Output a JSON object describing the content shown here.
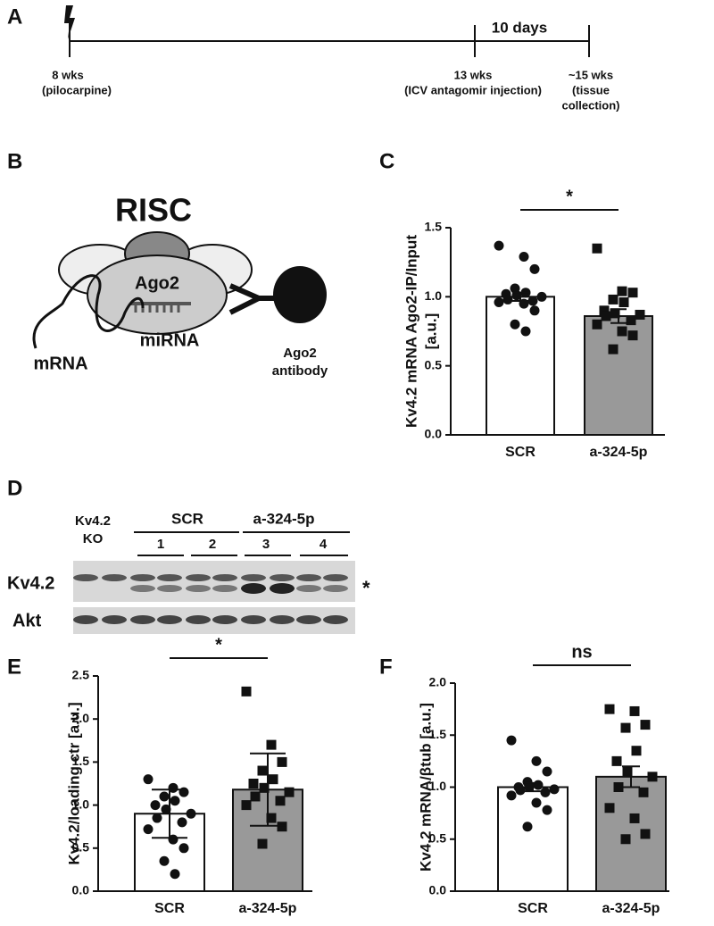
{
  "panel_labels": [
    "A",
    "B",
    "C",
    "D",
    "E",
    "F"
  ],
  "timeline": {
    "duration": "10 days",
    "points": [
      {
        "label": "8 wks",
        "note": "(pilocarpine)"
      },
      {
        "label": "13 wks",
        "note": "(ICV antagomir injection)"
      },
      {
        "label": "~15 wks",
        "note": [
          "(tissue",
          "collection)"
        ]
      }
    ]
  },
  "diagram": {
    "title": "RISC",
    "protein": "Ago2",
    "mirna": "miRNA",
    "mrna": "mRNA",
    "antibody": [
      "Ago2",
      "antibody"
    ]
  },
  "blot": {
    "control": [
      "Kv4.2",
      "KO"
    ],
    "groups": [
      {
        "name": "SCR",
        "lanes": [
          "1",
          "2"
        ]
      },
      {
        "name": "a-324-5p",
        "lanes": [
          "3",
          "4"
        ]
      }
    ],
    "rows": [
      "Kv4.2",
      "Akt"
    ],
    "annotation": "*"
  },
  "chart_data": [
    {
      "type": "bar",
      "ylabel": [
        "Kv4.2 mRNA Ago2-IP/Input",
        "[a.u.]"
      ],
      "categories": [
        "SCR",
        "a-324-5p"
      ],
      "values": [
        1.0,
        0.86
      ],
      "errors": [
        0.03,
        0.05
      ],
      "colors": [
        "#ffffff",
        "#999999"
      ],
      "markers": [
        "circle",
        "square"
      ],
      "significance": "*",
      "points": [
        [
          1.37,
          1.29,
          1.2,
          1.06,
          1.03,
          1.02,
          1.01,
          1.0,
          0.98,
          0.97,
          0.96,
          0.95,
          0.9,
          0.8,
          0.75
        ],
        [
          1.35,
          1.04,
          1.03,
          0.98,
          0.96,
          0.9,
          0.88,
          0.87,
          0.86,
          0.83,
          0.8,
          0.75,
          0.72,
          0.62
        ]
      ],
      "ylim": [
        0,
        1.5
      ],
      "yticks": [
        {
          "value": 0,
          "label": "0.0"
        },
        0.5,
        {
          "value": 1,
          "label": "1.0"
        },
        1.5
      ]
    },
    {
      "type": "bar",
      "ylabel": "Kv4.2/loading ctr [a.u.]",
      "categories": [
        "SCR",
        "a-324-5p"
      ],
      "values": [
        0.9,
        1.18
      ],
      "errors": [
        0.28,
        0.42
      ],
      "colors": [
        "#ffffff",
        "#999999"
      ],
      "markers": [
        "circle",
        "square"
      ],
      "significance": "*",
      "points": [
        [
          1.3,
          1.2,
          1.15,
          1.1,
          1.05,
          1.0,
          0.95,
          0.9,
          0.85,
          0.8,
          0.72,
          0.6,
          0.5,
          0.35,
          0.2
        ],
        [
          2.32,
          1.7,
          1.5,
          1.4,
          1.3,
          1.25,
          1.2,
          1.15,
          1.1,
          1.05,
          1.0,
          0.85,
          0.75,
          0.55
        ]
      ],
      "ylim": [
        0,
        2.5
      ],
      "yticks": [
        {
          "value": 0,
          "label": "0.0"
        },
        0.5,
        {
          "value": 1,
          "label": "1.0"
        },
        1.5,
        {
          "value": 2,
          "label": "2.0"
        },
        2.5
      ]
    },
    {
      "type": "bar",
      "ylabel": "Kv4.2 mRNA/βtub [a.u.]",
      "categories": [
        "SCR",
        "a-324-5p"
      ],
      "values": [
        1.0,
        1.1
      ],
      "errors": [
        0.04,
        0.1
      ],
      "colors": [
        "#ffffff",
        "#999999"
      ],
      "markers": [
        "circle",
        "square"
      ],
      "significance": "ns",
      "points": [
        [
          1.45,
          1.25,
          1.15,
          1.05,
          1.02,
          1.0,
          1.0,
          0.98,
          0.97,
          0.95,
          0.92,
          0.85,
          0.78,
          0.62
        ],
        [
          1.75,
          1.73,
          1.6,
          1.57,
          1.35,
          1.25,
          1.15,
          1.1,
          1.0,
          0.95,
          0.8,
          0.7,
          0.55,
          0.5
        ]
      ],
      "ylim": [
        0,
        2.0
      ],
      "yticks": [
        {
          "value": 0,
          "label": "0.0"
        },
        0.5,
        {
          "value": 1,
          "label": "1.0"
        },
        1.5,
        {
          "value": 2,
          "label": "2.0"
        }
      ]
    }
  ]
}
